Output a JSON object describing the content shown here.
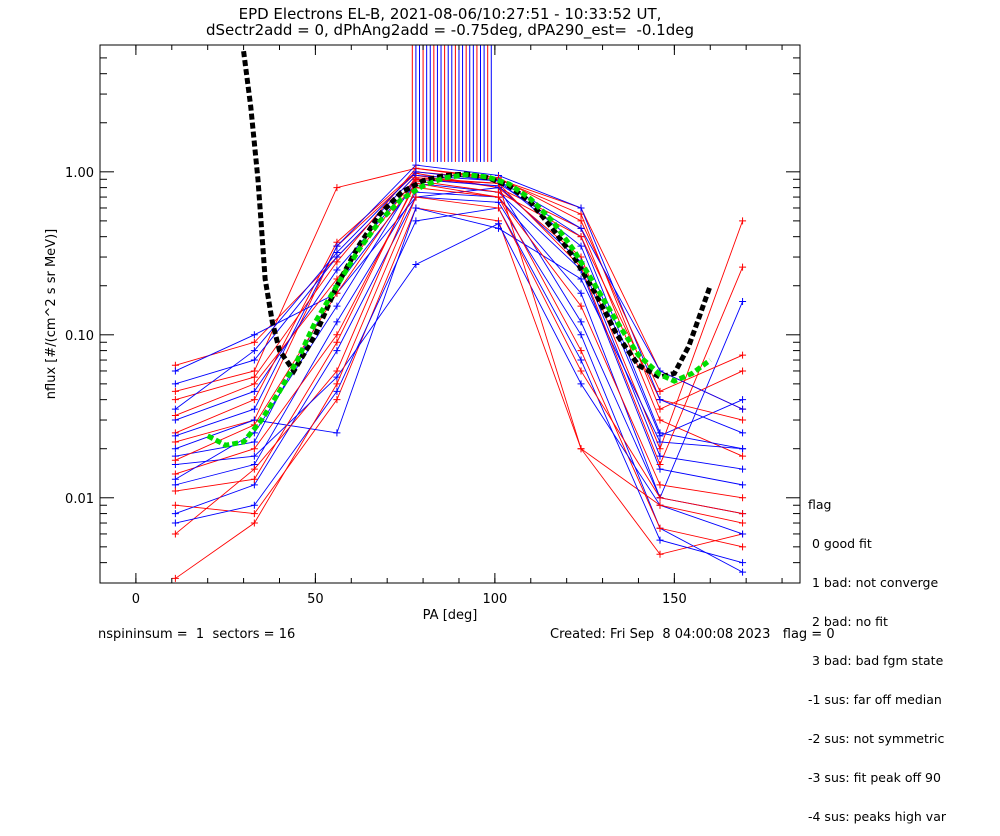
{
  "title_line1": "EPD Electrons EL-B, 2021-08-06/10:27:51 - 10:33:52 UT,",
  "title_line2": "dSectr2add = 0, dPhAng2add = -0.75deg, dPA290_est=  -0.1deg",
  "footer_left": "nspininsum =  1  sectors = 16",
  "footer_right": "Created: Fri Sep  8 04:00:08 2023   flag = 0",
  "legend": {
    "title": "flag",
    "items": [
      " 0 good fit",
      " 1 bad: not converge",
      " 2 bad: no fit",
      " 3 bad: bad fgm state",
      "-1 sus: far off median",
      "-2 sus: not symmetric",
      "-3 sus: fit peak off 90",
      "-4 sus: peaks high var"
    ]
  },
  "chart_data": {
    "type": "line",
    "xlabel": "PA [deg]",
    "ylabel": "nflux [#/(cm^2 s sr MeV)]",
    "xlim": [
      -10,
      185
    ],
    "ylim": [
      0.003,
      6.0
    ],
    "yscale": "log",
    "xticks": [
      0,
      50,
      100,
      150
    ],
    "yticks": [
      0.01,
      0.1,
      1.0
    ],
    "ytick_labels": [
      "0.01",
      "0.10",
      "1.00"
    ],
    "grid": false,
    "sector_pa": [
      11,
      33,
      56,
      78,
      101,
      124,
      146,
      169
    ],
    "colors": {
      "measured_a": "#ff0000",
      "measured_b": "#0000ff",
      "fit_median": "#000000",
      "fit_best": "#00dd00"
    },
    "series": [
      {
        "color": "red",
        "values": [
          0.022,
          0.03,
          0.35,
          0.98,
          0.8,
          0.45,
          0.03,
          0.018
        ]
      },
      {
        "color": "blue",
        "values": [
          0.018,
          0.022,
          0.2,
          0.85,
          0.75,
          0.25,
          0.015,
          0.012
        ]
      },
      {
        "color": "red",
        "values": [
          0.045,
          0.06,
          0.8,
          1.05,
          0.9,
          0.6,
          0.06,
          0.035
        ]
      },
      {
        "color": "blue",
        "values": [
          0.012,
          0.016,
          0.12,
          0.75,
          0.7,
          0.18,
          0.01,
          0.008
        ]
      },
      {
        "color": "red",
        "values": [
          0.009,
          0.008,
          0.04,
          0.6,
          0.5,
          0.02,
          0.0045,
          0.006
        ]
      },
      {
        "color": "blue",
        "values": [
          0.03,
          0.045,
          0.25,
          0.9,
          0.85,
          0.4,
          0.025,
          0.02
        ]
      },
      {
        "color": "red",
        "values": [
          0.065,
          0.09,
          0.3,
          0.95,
          0.8,
          0.3,
          0.02,
          0.5
        ]
      },
      {
        "color": "blue",
        "values": [
          0.06,
          0.1,
          0.18,
          0.7,
          0.8,
          0.12,
          0.01,
          0.16
        ]
      },
      {
        "color": "blue",
        "values": [
          0.02,
          0.03,
          0.025,
          0.6,
          0.45,
          0.22,
          0.022,
          0.02
        ]
      },
      {
        "color": "red",
        "values": [
          0.014,
          0.02,
          0.1,
          0.85,
          0.7,
          0.15,
          0.012,
          0.01
        ]
      },
      {
        "color": "blue",
        "values": [
          0.008,
          0.012,
          0.08,
          0.7,
          0.65,
          0.1,
          0.0065,
          0.0035
        ]
      },
      {
        "color": "red",
        "values": [
          0.025,
          0.04,
          0.37,
          1.0,
          0.9,
          0.55,
          0.035,
          0.06
        ]
      },
      {
        "color": "blue",
        "values": [
          0.05,
          0.07,
          0.3,
          0.95,
          0.88,
          0.35,
          0.024,
          0.04
        ]
      },
      {
        "color": "red",
        "values": [
          0.006,
          0.015,
          0.06,
          0.8,
          0.7,
          0.08,
          0.0065,
          0.005
        ]
      },
      {
        "color": "blue",
        "values": [
          0.013,
          0.025,
          0.15,
          0.9,
          0.82,
          0.28,
          0.018,
          0.015
        ]
      },
      {
        "color": "red",
        "values": [
          0.032,
          0.05,
          0.22,
          0.92,
          0.85,
          0.26,
          0.016,
          0.26
        ]
      },
      {
        "color": "blue",
        "values": [
          0.016,
          0.018,
          0.055,
          0.27,
          0.48,
          0.05,
          0.009,
          0.006
        ]
      },
      {
        "color": "red",
        "values": [
          0.011,
          0.013,
          0.09,
          0.88,
          0.75,
          0.4,
          0.04,
          0.03
        ]
      },
      {
        "color": "blue",
        "values": [
          0.024,
          0.035,
          0.35,
          1.1,
          0.95,
          0.6,
          0.04,
          0.025
        ]
      },
      {
        "color": "red",
        "values": [
          0.017,
          0.028,
          0.18,
          0.9,
          0.85,
          0.02,
          0.009,
          0.007
        ]
      },
      {
        "color": "blue",
        "values": [
          0.007,
          0.009,
          0.045,
          0.5,
          0.6,
          0.07,
          0.0055,
          0.004
        ]
      },
      {
        "color": "red",
        "values": [
          0.04,
          0.055,
          0.28,
          1.05,
          0.92,
          0.5,
          0.045,
          0.075
        ]
      },
      {
        "color": "blue",
        "values": [
          0.035,
          0.08,
          0.32,
          1.0,
          0.88,
          0.45,
          0.06,
          0.035
        ]
      },
      {
        "color": "red",
        "values": [
          0.0032,
          0.007,
          0.05,
          0.7,
          0.6,
          0.06,
          0.01,
          0.008
        ]
      }
    ],
    "fit_median": {
      "style": "black dashed",
      "x": [
        30,
        32,
        34,
        35,
        36,
        38,
        40,
        44,
        50,
        56,
        62,
        68,
        74,
        80,
        86,
        92,
        98,
        104,
        110,
        116,
        122,
        128,
        134,
        140,
        146,
        150,
        154,
        157,
        160
      ],
      "y": [
        5.5,
        2.5,
        0.9,
        0.45,
        0.22,
        0.12,
        0.08,
        0.06,
        0.1,
        0.2,
        0.35,
        0.55,
        0.75,
        0.88,
        0.95,
        0.97,
        0.92,
        0.82,
        0.65,
        0.45,
        0.3,
        0.18,
        0.1,
        0.065,
        0.055,
        0.058,
        0.085,
        0.13,
        0.2
      ]
    },
    "fit_best": {
      "style": "green dashed",
      "x": [
        20,
        25,
        30,
        35,
        40,
        45,
        50,
        56,
        62,
        68,
        74,
        80,
        86,
        92,
        98,
        104,
        110,
        116,
        122,
        128,
        134,
        140,
        146,
        150,
        155,
        160
      ],
      "y": [
        0.024,
        0.021,
        0.022,
        0.03,
        0.045,
        0.07,
        0.12,
        0.2,
        0.33,
        0.5,
        0.68,
        0.82,
        0.92,
        0.96,
        0.93,
        0.84,
        0.68,
        0.5,
        0.33,
        0.2,
        0.12,
        0.075,
        0.057,
        0.052,
        0.058,
        0.07
      ]
    },
    "saturated_spikes": {
      "note": "vertical measurement lines near 90 deg extending past the top axis",
      "x": [
        77,
        78,
        79,
        80,
        81,
        82,
        83,
        84,
        85,
        86,
        87,
        88,
        89,
        90,
        91,
        92,
        93,
        94,
        95,
        96,
        97,
        98,
        99
      ],
      "y_bottom": 1.15
    }
  }
}
